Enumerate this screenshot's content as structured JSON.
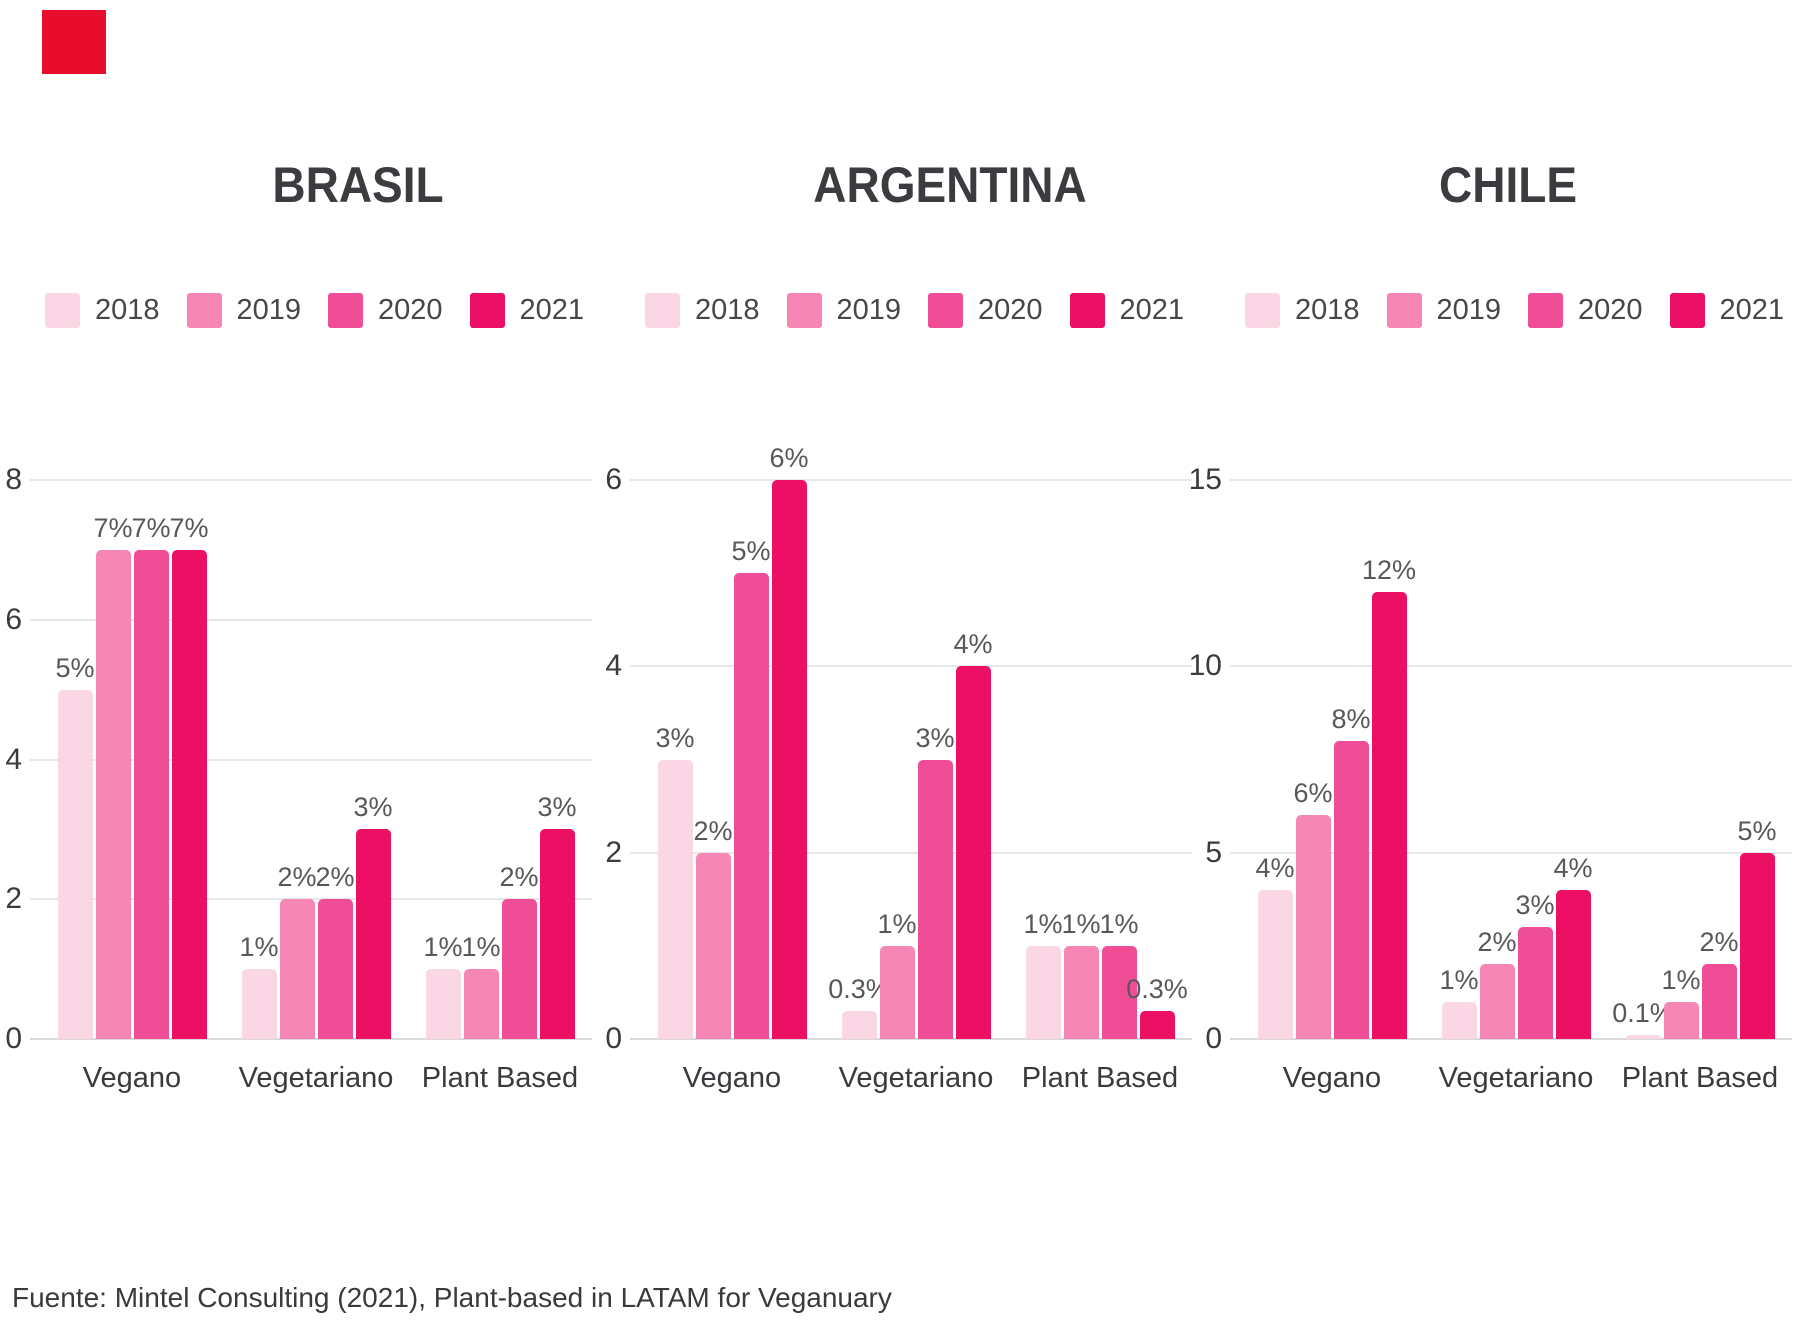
{
  "page": {
    "background_color": "#ffffff",
    "accent_square_color": "#e80d2b"
  },
  "footer": {
    "source_text": "Fuente: Mintel Consulting (2021), Plant-based in LATAM for Veganuary"
  },
  "legend": {
    "items": [
      {
        "label": "2018",
        "color": "#fbd7e6"
      },
      {
        "label": "2019",
        "color": "#f687b5"
      },
      {
        "label": "2020",
        "color": "#ef4e96"
      },
      {
        "label": "2021",
        "color": "#ec1065"
      }
    ]
  },
  "chart_data": [
    {
      "type": "bar",
      "title": "BRASIL",
      "categories": [
        "Vegano",
        "Vegetariano",
        "Plant Based"
      ],
      "ylim": [
        0,
        8
      ],
      "yticks": [
        0,
        2,
        4,
        6,
        8
      ],
      "grid": true,
      "legend_position": "top",
      "series": [
        {
          "name": "2018",
          "color": "#fbd7e6",
          "values": [
            5,
            1,
            1
          ],
          "labels": [
            "5%",
            "1%",
            "1%"
          ]
        },
        {
          "name": "2019",
          "color": "#f687b5",
          "values": [
            7,
            2,
            1
          ],
          "labels": [
            "7%",
            "2%",
            "1%"
          ]
        },
        {
          "name": "2020",
          "color": "#ef4e96",
          "values": [
            7,
            2,
            2
          ],
          "labels": [
            "7%",
            "2%",
            "2%"
          ]
        },
        {
          "name": "2021",
          "color": "#ec1065",
          "values": [
            7,
            3,
            3
          ],
          "labels": [
            "7%",
            "3%",
            "3%"
          ]
        }
      ]
    },
    {
      "type": "bar",
      "title": "ARGENTINA",
      "categories": [
        "Vegano",
        "Vegetariano",
        "Plant Based"
      ],
      "ylim": [
        0,
        6
      ],
      "yticks": [
        0,
        2,
        4,
        6
      ],
      "grid": true,
      "legend_position": "top",
      "series": [
        {
          "name": "2018",
          "color": "#fbd7e6",
          "values": [
            3,
            0.3,
            1
          ],
          "labels": [
            "3%",
            "0.3%",
            "1%"
          ]
        },
        {
          "name": "2019",
          "color": "#f687b5",
          "values": [
            2,
            1,
            1
          ],
          "labels": [
            "2%",
            "1%",
            "1%"
          ]
        },
        {
          "name": "2020",
          "color": "#ef4e96",
          "values": [
            5,
            3,
            1
          ],
          "labels": [
            "5%",
            "3%",
            "1%"
          ]
        },
        {
          "name": "2021",
          "color": "#ec1065",
          "values": [
            6,
            4,
            0.3
          ],
          "labels": [
            "6%",
            "4%",
            "0.3%"
          ]
        }
      ]
    },
    {
      "type": "bar",
      "title": "CHILE",
      "categories": [
        "Vegano",
        "Vegetariano",
        "Plant Based"
      ],
      "ylim": [
        0,
        15
      ],
      "yticks": [
        0,
        5,
        10,
        15
      ],
      "grid": true,
      "legend_position": "top",
      "series": [
        {
          "name": "2018",
          "color": "#fbd7e6",
          "values": [
            4,
            1,
            0.1
          ],
          "labels": [
            "4%",
            "1%",
            "0.1%"
          ]
        },
        {
          "name": "2019",
          "color": "#f687b5",
          "values": [
            6,
            2,
            1
          ],
          "labels": [
            "6%",
            "2%",
            "1%"
          ]
        },
        {
          "name": "2020",
          "color": "#ef4e96",
          "values": [
            8,
            3,
            2
          ],
          "labels": [
            "8%",
            "3%",
            "2%"
          ]
        },
        {
          "name": "2021",
          "color": "#ec1065",
          "values": [
            12,
            4,
            5
          ],
          "labels": [
            "12%",
            "4%",
            "5%"
          ]
        }
      ]
    }
  ]
}
